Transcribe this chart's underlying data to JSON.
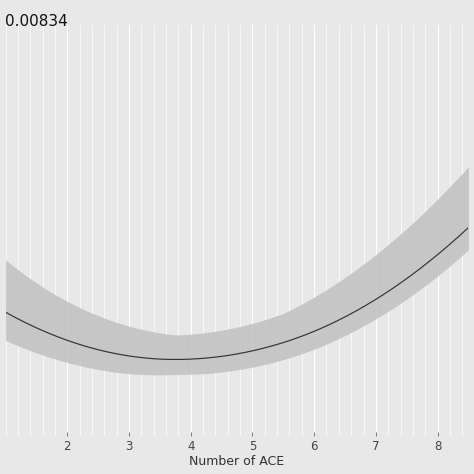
{
  "title": "0.00834",
  "xlabel": "Number of ACE",
  "ylabel": "",
  "xlim": [
    1.0,
    8.5
  ],
  "ylim": [
    0.0,
    1.0
  ],
  "x_ticks": [
    2,
    3,
    4,
    5,
    6,
    7,
    8
  ],
  "background_color": "#e8e8e8",
  "grid_color": "#ffffff",
  "line_color": "#333333",
  "band_color": "#c0c0c0",
  "band_alpha": 0.85,
  "title_fontsize": 11,
  "xlabel_fontsize": 9
}
